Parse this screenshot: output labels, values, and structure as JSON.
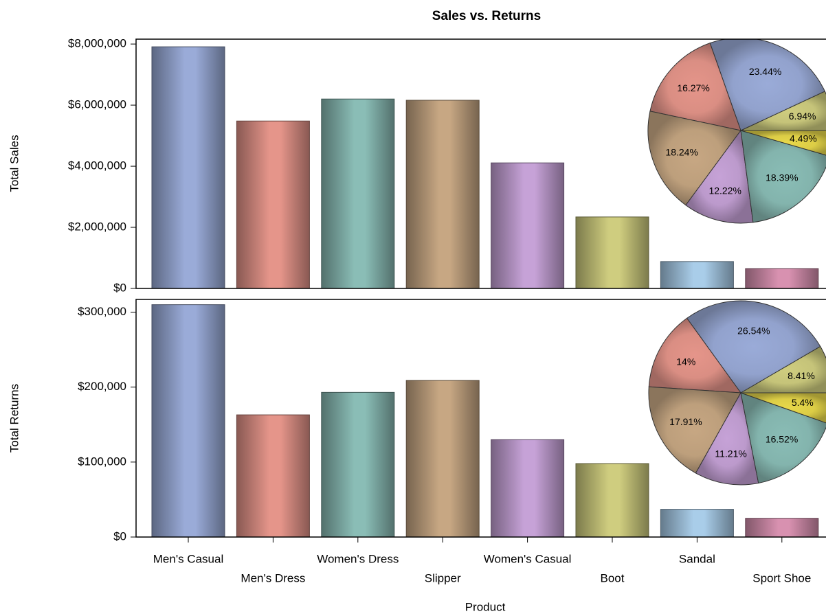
{
  "chart_data": [
    {
      "type": "bar",
      "title": "Sales vs. Returns",
      "ylabel": "Total Sales",
      "values": [
        7910000,
        5480000,
        6200000,
        6160000,
        4110000,
        2340000,
        880000,
        650000
      ],
      "colors": [
        "#9aabd8",
        "#e5958a",
        "#8abdb6",
        "#c7a783",
        "#c6a2d7",
        "#cfcd7f",
        "#a9cde9",
        "#d891b0"
      ],
      "ylim": [
        0,
        8160000
      ],
      "yticks": [
        {
          "value": 0,
          "label": "$0"
        },
        {
          "value": 2000000,
          "label": "$2,000,000"
        },
        {
          "value": 4000000,
          "label": "$4,000,000"
        },
        {
          "value": 6000000,
          "label": "$6,000,000"
        },
        {
          "value": 8000000,
          "label": "$8,000,000"
        }
      ],
      "inset": {
        "type": "pie",
        "values": [
          6.94,
          23.44,
          16.27,
          18.24,
          12.22,
          18.39,
          4.49
        ],
        "value_labels": [
          "6.94%",
          "23.44%",
          "16.27%",
          "18.24%",
          "12.22%",
          "18.39%",
          "4.49%"
        ],
        "colors": [
          "#cfcd7f",
          "#9aabd8",
          "#e5958a",
          "#c7a783",
          "#c6a2d7",
          "#8abdb6",
          "#e8d84a"
        ]
      }
    },
    {
      "type": "bar",
      "xlabel": "Product",
      "ylabel": "Total Returns",
      "categories": [
        "Men's Casual",
        "Men's Dress",
        "Women's Dress",
        "Slipper",
        "Women's Casual",
        "Boot",
        "Sandal",
        "Sport Shoe"
      ],
      "values": [
        310000,
        163000,
        193000,
        209000,
        130000,
        98000,
        37000,
        25000
      ],
      "colors": [
        "#9aabd8",
        "#e5958a",
        "#8abdb6",
        "#c7a783",
        "#c6a2d7",
        "#cfcd7f",
        "#a9cde9",
        "#d891b0"
      ],
      "ylim": [
        0,
        317000
      ],
      "yticks": [
        {
          "value": 0,
          "label": "$0"
        },
        {
          "value": 100000,
          "label": "$100,000"
        },
        {
          "value": 200000,
          "label": "$200,000"
        },
        {
          "value": 300000,
          "label": "$300,000"
        }
      ],
      "inset": {
        "type": "pie",
        "values": [
          8.41,
          26.54,
          14,
          17.91,
          11.21,
          16.52,
          5.4
        ],
        "value_labels": [
          "8.41%",
          "26.54%",
          "14%",
          "17.91%",
          "11.21%",
          "16.52%",
          "5.4%"
        ],
        "colors": [
          "#cfcd7f",
          "#9aabd8",
          "#e5958a",
          "#c7a783",
          "#c6a2d7",
          "#8abdb6",
          "#e8d84a"
        ]
      }
    }
  ]
}
